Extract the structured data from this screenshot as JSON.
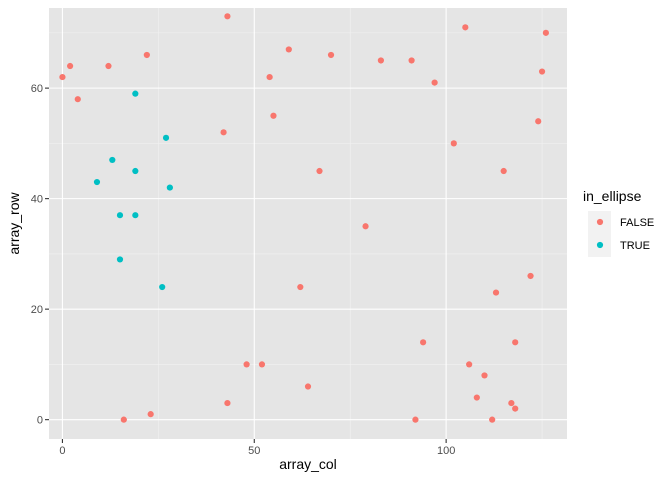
{
  "chart_data": {
    "type": "scatter",
    "title": "",
    "xlabel": "array_col",
    "ylabel": "array_row",
    "xlim": [
      -3.5,
      131.5
    ],
    "ylim": [
      -3.5,
      74.5
    ],
    "x_ticks": [
      0,
      50,
      100
    ],
    "y_ticks": [
      0,
      20,
      40,
      60
    ],
    "x_minor_ticks": [
      25,
      75,
      125
    ],
    "y_minor_ticks": [
      10,
      30,
      50,
      70
    ],
    "grid": true,
    "panel_background": "#E5E5E5",
    "legend": {
      "title": "in_ellipse",
      "placement": "right",
      "entries": [
        {
          "label": "FALSE",
          "color": "#F8766D"
        },
        {
          "label": "TRUE",
          "color": "#00BFC4"
        }
      ]
    },
    "series": [
      {
        "name": "FALSE",
        "color": "#F8766D",
        "points": [
          [
            0,
            62
          ],
          [
            2,
            64
          ],
          [
            4,
            58
          ],
          [
            12,
            64
          ],
          [
            22,
            66
          ],
          [
            43,
            73
          ],
          [
            54,
            62
          ],
          [
            55,
            55
          ],
          [
            59,
            67
          ],
          [
            70,
            66
          ],
          [
            83,
            65
          ],
          [
            91,
            65
          ],
          [
            97,
            61
          ],
          [
            105,
            71
          ],
          [
            126,
            70
          ],
          [
            125,
            63
          ],
          [
            124,
            54
          ],
          [
            102,
            50
          ],
          [
            115,
            45
          ],
          [
            42,
            52
          ],
          [
            67,
            45
          ],
          [
            79,
            35
          ],
          [
            122,
            26
          ],
          [
            62,
            24
          ],
          [
            113,
            23
          ],
          [
            94,
            14
          ],
          [
            118,
            14
          ],
          [
            48,
            10
          ],
          [
            52,
            10
          ],
          [
            106,
            10
          ],
          [
            110,
            8
          ],
          [
            108,
            4
          ],
          [
            64,
            6
          ],
          [
            43,
            3
          ],
          [
            117,
            3
          ],
          [
            118,
            2
          ],
          [
            23,
            1
          ],
          [
            16,
            0
          ],
          [
            92,
            0
          ],
          [
            112,
            0
          ]
        ]
      },
      {
        "name": "TRUE",
        "color": "#00BFC4",
        "points": [
          [
            19,
            59
          ],
          [
            27,
            51
          ],
          [
            13,
            47
          ],
          [
            19,
            45
          ],
          [
            9,
            43
          ],
          [
            28,
            42
          ],
          [
            15,
            37
          ],
          [
            19,
            37
          ],
          [
            15,
            29
          ],
          [
            26,
            24
          ]
        ]
      }
    ]
  }
}
